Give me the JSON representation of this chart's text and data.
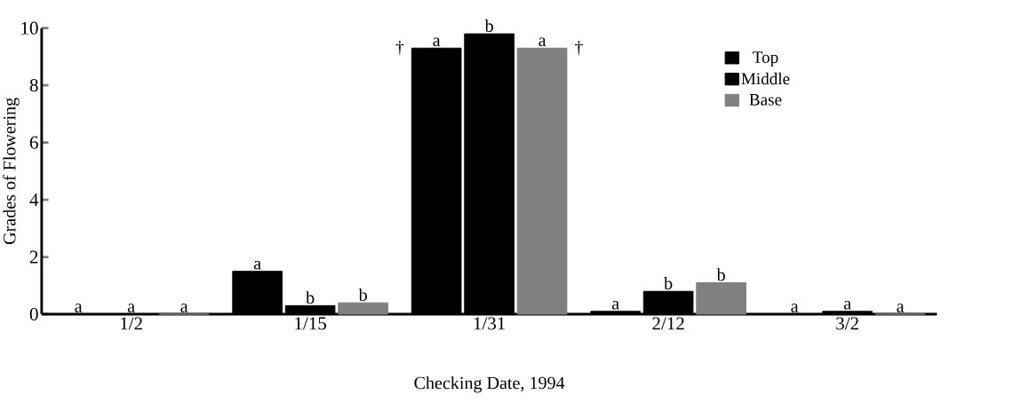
{
  "chart_data": {
    "type": "bar",
    "xlabel": "Checking Date, 1994",
    "ylabel": "Grades of Flowering",
    "categories": [
      "1/2",
      "1/15",
      "1/31",
      "2/12",
      "3/2"
    ],
    "series": [
      {
        "name": "Top",
        "color": "#000000",
        "values": [
          0,
          1.5,
          9.3,
          0.1,
          0
        ],
        "value_labels": [
          "a",
          "a",
          "a",
          "a",
          "a"
        ]
      },
      {
        "name": "Middle",
        "color": "#000000",
        "values": [
          0,
          0.3,
          9.8,
          0.8,
          0.1
        ],
        "value_labels": [
          "a",
          "b",
          "b",
          "b",
          "a"
        ]
      },
      {
        "name": "Base",
        "color": "#808080",
        "values": [
          0,
          0.4,
          9.3,
          1.1,
          0
        ],
        "value_labels": [
          "a",
          "b",
          "a",
          "b",
          "a"
        ]
      }
    ],
    "ylim": [
      0,
      10
    ],
    "yticks": [
      0,
      2,
      4,
      6,
      8,
      10
    ],
    "grid": false,
    "legend": "top right",
    "annotations": [
      "†",
      "†"
    ]
  }
}
